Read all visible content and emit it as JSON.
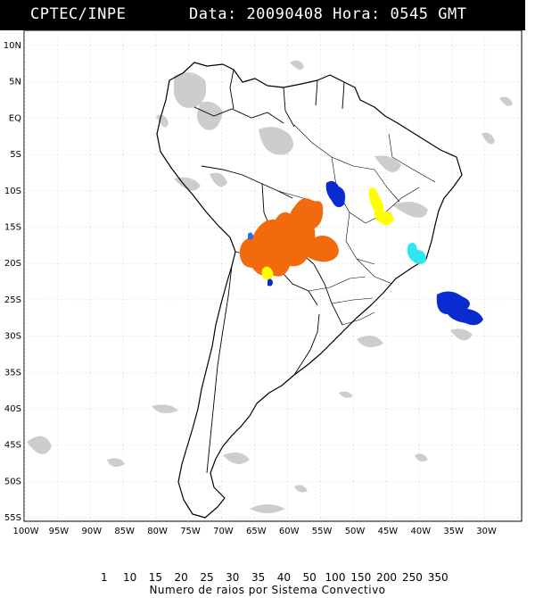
{
  "header": {
    "source": "CPTEC/INPE",
    "date_label": "Data:",
    "date_value": "20090408",
    "time_label": "Hora:",
    "time_value": "0545",
    "timezone": "GMT"
  },
  "map": {
    "lat_labels": [
      "10N",
      "5N",
      "EQ",
      "5S",
      "10S",
      "15S",
      "20S",
      "25S",
      "30S",
      "35S",
      "40S",
      "45S",
      "50S",
      "55S"
    ],
    "lon_labels": [
      "100W",
      "95W",
      "90W",
      "85W",
      "80W",
      "75W",
      "70W",
      "65W",
      "60W",
      "55W",
      "50W",
      "45W",
      "40W",
      "35W",
      "30W"
    ],
    "lightning_systems": [
      {
        "region": "Mato Grosso / Bolivia",
        "category": "200-250",
        "color": "#f26a0d"
      },
      {
        "region": "Goias north",
        "category": "35-40",
        "color": "#ffff00"
      },
      {
        "region": "Para south",
        "category": "1-10",
        "color": "#0a2bd0"
      },
      {
        "region": "Bahia south coast",
        "category": "25-30",
        "color": "#30e6ee"
      },
      {
        "region": "South Atlantic",
        "category": "1-10",
        "color": "#0a2bd0"
      },
      {
        "region": "Paraguay",
        "category": "35-40",
        "color": "#ffff00"
      }
    ]
  },
  "legend": {
    "values": [
      "1",
      "10",
      "15",
      "20",
      "25",
      "30",
      "35",
      "40",
      "50",
      "100",
      "150",
      "200",
      "250",
      "350"
    ],
    "colors": [
      "#1a3ee8",
      "#2f6cf0",
      "#2a9bef",
      "#1fc8f0",
      "#3fe8ef",
      "#bff5f5",
      "#ffffc0",
      "#ffff00",
      "#ffdd00",
      "#ffc000",
      "#ffa000",
      "#ff7800",
      "#ff4a00",
      "#ff0a00",
      "#ff0080"
    ],
    "end_colors": {
      "left": "#0000e0",
      "right": "#ff1a8c"
    },
    "caption": "Numero de raios por Sistema Convectivo"
  }
}
